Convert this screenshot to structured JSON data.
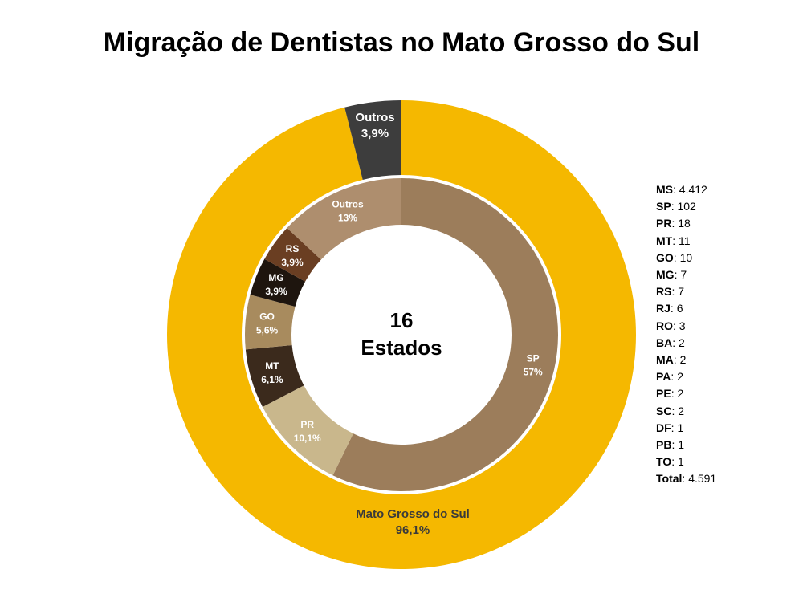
{
  "title": "Migração de Dentistas no Mato Grosso do Sul",
  "center_label": {
    "line1": "16",
    "line2": "Estados"
  },
  "chart_data": [
    {
      "type": "pie",
      "ring": "outer",
      "slices": [
        {
          "label": "Mato Grosso do Sul",
          "pct_label": "96,1%",
          "value": 96.1,
          "color": "#F5B800",
          "text_color": "#3a3a3a"
        },
        {
          "label": "Outros",
          "pct_label": "3,9%",
          "value": 3.9,
          "color": "#3D3D3D",
          "text_color": "#ffffff"
        }
      ]
    },
    {
      "type": "pie",
      "ring": "inner",
      "slices": [
        {
          "label": "SP",
          "pct_label": "57%",
          "value": 57,
          "color": "#9C7D5B",
          "text_color": "#ffffff"
        },
        {
          "label": "PR",
          "pct_label": "10,1%",
          "value": 10.1,
          "color": "#C9B78C",
          "text_color": "#ffffff"
        },
        {
          "label": "MT",
          "pct_label": "6,1%",
          "value": 6.1,
          "color": "#3B2A1C",
          "text_color": "#ffffff"
        },
        {
          "label": "GO",
          "pct_label": "5,6%",
          "value": 5.6,
          "color": "#A88B5E",
          "text_color": "#ffffff"
        },
        {
          "label": "MG",
          "pct_label": "3,9%",
          "value": 3.9,
          "color": "#1E150E",
          "text_color": "#ffffff"
        },
        {
          "label": "RS",
          "pct_label": "3,9%",
          "value": 3.9,
          "color": "#6A3E22",
          "text_color": "#ffffff"
        },
        {
          "label": "Outros",
          "pct_label": "13%",
          "value": 13,
          "color": "#AE8E6E",
          "text_color": "#ffffff"
        }
      ]
    }
  ],
  "legend": [
    {
      "key": "MS",
      "value": "4.412"
    },
    {
      "key": "SP",
      "value": "102"
    },
    {
      "key": "PR",
      "value": "18"
    },
    {
      "key": "MT",
      "value": "11"
    },
    {
      "key": "GO",
      "value": "10"
    },
    {
      "key": "MG",
      "value": "7"
    },
    {
      "key": "RS",
      "value": "7"
    },
    {
      "key": "RJ",
      "value": "6"
    },
    {
      "key": "RO",
      "value": "3"
    },
    {
      "key": "BA",
      "value": "2"
    },
    {
      "key": "MA",
      "value": "2"
    },
    {
      "key": "PA",
      "value": "2"
    },
    {
      "key": "PE",
      "value": "2"
    },
    {
      "key": "SC",
      "value": "2"
    },
    {
      "key": "DF",
      "value": "1"
    },
    {
      "key": "PB",
      "value": "1"
    },
    {
      "key": "TO",
      "value": "1"
    },
    {
      "key": "Total",
      "value": "4.591"
    }
  ]
}
